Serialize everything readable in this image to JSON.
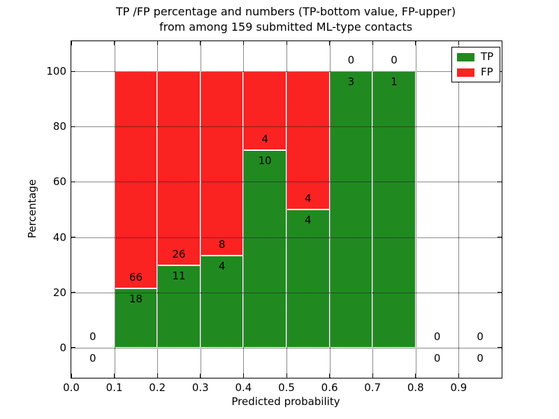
{
  "figure": {
    "background": "#ffffff",
    "title_line1": "TP /FP percentage and numbers (TP-bottom value, FP-upper)",
    "title_line2": "from among 159 submitted ML-type contacts"
  },
  "chart_data": {
    "type": "bar",
    "stacked": true,
    "title": "TP /FP percentage and numbers (TP-bottom value, FP-upper) from among 159 submitted ML-type contacts",
    "xlabel": "Predicted probability",
    "ylabel": "Percentage",
    "total_contacts": 159,
    "xlim": [
      0.0,
      1.0
    ],
    "ylim": [
      -11,
      111
    ],
    "grid": true,
    "grid_style": "dotted",
    "grid_above_bars": true,
    "tick_direction": "in",
    "xticks": [
      {
        "value": 0.0,
        "label": "0.0"
      },
      {
        "value": 0.1,
        "label": "0.1"
      },
      {
        "value": 0.2,
        "label": "0.2"
      },
      {
        "value": 0.3,
        "label": "0.3"
      },
      {
        "value": 0.4,
        "label": "0.4"
      },
      {
        "value": 0.5,
        "label": "0.5"
      },
      {
        "value": 0.6,
        "label": "0.6"
      },
      {
        "value": 0.7,
        "label": "0.7"
      },
      {
        "value": 0.8,
        "label": "0.8"
      },
      {
        "value": 0.9,
        "label": "0.9"
      }
    ],
    "yticks": [
      {
        "value": 0,
        "label": "0"
      },
      {
        "value": 20,
        "label": "20"
      },
      {
        "value": 40,
        "label": "40"
      },
      {
        "value": 60,
        "label": "60"
      },
      {
        "value": 80,
        "label": "80"
      },
      {
        "value": 100,
        "label": "100"
      }
    ],
    "legend": {
      "position": "upper right",
      "entries": [
        {
          "label": "TP",
          "color": "#208a20"
        },
        {
          "label": "FP",
          "color": "#fb2222"
        }
      ]
    },
    "series": [
      {
        "name": "TP",
        "color": "#208a20",
        "stack_role": "bottom"
      },
      {
        "name": "FP",
        "color": "#fb2222",
        "stack_role": "top"
      }
    ],
    "bins": [
      {
        "x0": 0.0,
        "x1": 0.1,
        "tp_count": 0,
        "fp_count": 0,
        "tp_pct": 0,
        "fp_pct": 0
      },
      {
        "x0": 0.1,
        "x1": 0.2,
        "tp_count": 18,
        "fp_count": 66,
        "tp_pct": 21.43,
        "fp_pct": 78.57
      },
      {
        "x0": 0.2,
        "x1": 0.3,
        "tp_count": 11,
        "fp_count": 26,
        "tp_pct": 29.73,
        "fp_pct": 70.27
      },
      {
        "x0": 0.3,
        "x1": 0.4,
        "tp_count": 4,
        "fp_count": 8,
        "tp_pct": 33.33,
        "fp_pct": 66.67
      },
      {
        "x0": 0.4,
        "x1": 0.5,
        "tp_count": 10,
        "fp_count": 4,
        "tp_pct": 71.43,
        "fp_pct": 28.57
      },
      {
        "x0": 0.5,
        "x1": 0.6,
        "tp_count": 4,
        "fp_count": 4,
        "tp_pct": 50.0,
        "fp_pct": 50.0
      },
      {
        "x0": 0.6,
        "x1": 0.7,
        "tp_count": 3,
        "fp_count": 0,
        "tp_pct": 100.0,
        "fp_pct": 0
      },
      {
        "x0": 0.7,
        "x1": 0.8,
        "tp_count": 1,
        "fp_count": 0,
        "tp_pct": 100.0,
        "fp_pct": 0
      },
      {
        "x0": 0.8,
        "x1": 0.9,
        "tp_count": 0,
        "fp_count": 0,
        "tp_pct": 0,
        "fp_pct": 0
      },
      {
        "x0": 0.9,
        "x1": 1.0,
        "tp_count": 0,
        "fp_count": 0,
        "tp_pct": 0,
        "fp_pct": 0
      }
    ]
  }
}
